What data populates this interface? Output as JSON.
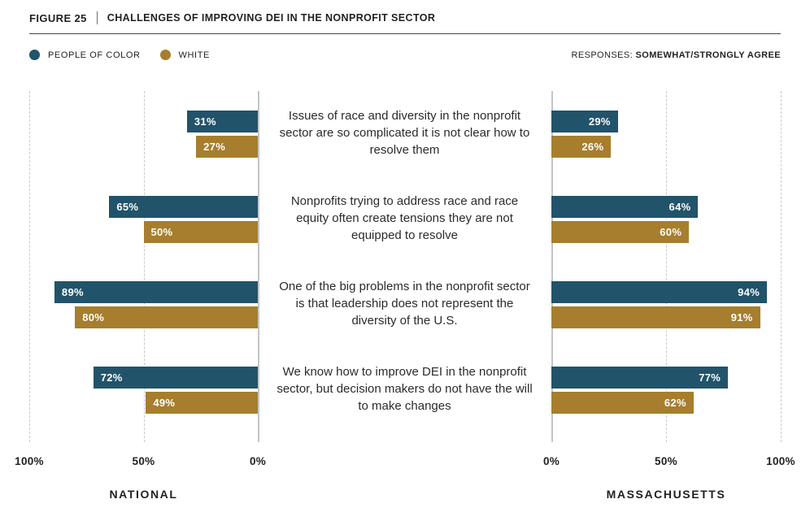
{
  "header": {
    "figure_label": "FIGURE 25",
    "title": "CHALLENGES OF IMPROVING DEI IN THE NONPROFIT SECTOR"
  },
  "legend": {
    "items": [
      {
        "label": "PEOPLE OF COLOR",
        "color": "#21536A"
      },
      {
        "label": "WHITE",
        "color": "#A67E2D"
      }
    ],
    "responses_prefix": "RESPONSES:",
    "responses_value": "SOMEWHAT/STRONGLY AGREE"
  },
  "chart_data": {
    "type": "bar",
    "orientation": "horizontal",
    "value_suffix": "%",
    "grid": "dashed vertical at 50% and 100%, solid axis at 0%",
    "panels": [
      {
        "name": "NATIONAL",
        "direction": "right-to-left",
        "axis_ticks": [
          "100%",
          "50%",
          "0%"
        ],
        "xlim": [
          0,
          100
        ]
      },
      {
        "name": "MASSACHUSETTS",
        "direction": "left-to-right",
        "axis_ticks": [
          "0%",
          "50%",
          "100%"
        ],
        "xlim": [
          0,
          100
        ]
      }
    ],
    "series": [
      {
        "key": "people_of_color",
        "name": "PEOPLE OF COLOR",
        "color": "#21536A"
      },
      {
        "key": "white",
        "name": "WHITE",
        "color": "#A67E2D"
      }
    ],
    "rows": [
      {
        "question": "Issues of race and diversity in the nonprofit sector are so complicated it is not clear how to resolve them",
        "national": {
          "people_of_color": 31,
          "white": 27
        },
        "massachusetts": {
          "people_of_color": 29,
          "white": 26
        }
      },
      {
        "question": "Nonprofits trying to address race and race equity often create tensions they are not equipped to resolve",
        "national": {
          "people_of_color": 65,
          "white": 50
        },
        "massachusetts": {
          "people_of_color": 64,
          "white": 60
        }
      },
      {
        "question": "One of the big problems in the nonprofit sector is that leadership does not represent the diversity of the U.S.",
        "national": {
          "people_of_color": 89,
          "white": 80
        },
        "massachusetts": {
          "people_of_color": 94,
          "white": 91
        }
      },
      {
        "question": "We know how to improve DEI in the nonprofit sector, but decision makers do not have the will to make changes",
        "national": {
          "people_of_color": 72,
          "white": 49
        },
        "massachusetts": {
          "people_of_color": 77,
          "white": 62
        }
      }
    ]
  }
}
